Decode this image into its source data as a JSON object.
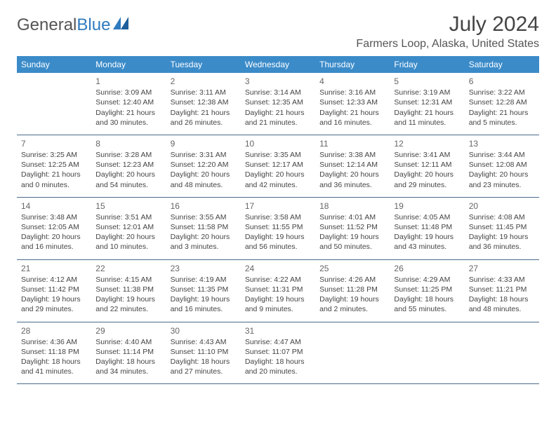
{
  "logo": {
    "text1": "General",
    "text2": "Blue"
  },
  "title": "July 2024",
  "location": "Farmers Loop, Alaska, United States",
  "colors": {
    "header_bg": "#3b8bc9",
    "header_fg": "#ffffff",
    "row_border": "#4a6a8a",
    "text": "#444444",
    "daynum": "#666666"
  },
  "dow": [
    "Sunday",
    "Monday",
    "Tuesday",
    "Wednesday",
    "Thursday",
    "Friday",
    "Saturday"
  ],
  "weeks": [
    [
      null,
      {
        "n": "1",
        "sr": "3:09 AM",
        "ss": "12:40 AM",
        "dl": "21 hours and 30 minutes."
      },
      {
        "n": "2",
        "sr": "3:11 AM",
        "ss": "12:38 AM",
        "dl": "21 hours and 26 minutes."
      },
      {
        "n": "3",
        "sr": "3:14 AM",
        "ss": "12:35 AM",
        "dl": "21 hours and 21 minutes."
      },
      {
        "n": "4",
        "sr": "3:16 AM",
        "ss": "12:33 AM",
        "dl": "21 hours and 16 minutes."
      },
      {
        "n": "5",
        "sr": "3:19 AM",
        "ss": "12:31 AM",
        "dl": "21 hours and 11 minutes."
      },
      {
        "n": "6",
        "sr": "3:22 AM",
        "ss": "12:28 AM",
        "dl": "21 hours and 5 minutes."
      }
    ],
    [
      {
        "n": "7",
        "sr": "3:25 AM",
        "ss": "12:25 AM",
        "dl": "21 hours and 0 minutes."
      },
      {
        "n": "8",
        "sr": "3:28 AM",
        "ss": "12:23 AM",
        "dl": "20 hours and 54 minutes."
      },
      {
        "n": "9",
        "sr": "3:31 AM",
        "ss": "12:20 AM",
        "dl": "20 hours and 48 minutes."
      },
      {
        "n": "10",
        "sr": "3:35 AM",
        "ss": "12:17 AM",
        "dl": "20 hours and 42 minutes."
      },
      {
        "n": "11",
        "sr": "3:38 AM",
        "ss": "12:14 AM",
        "dl": "20 hours and 36 minutes."
      },
      {
        "n": "12",
        "sr": "3:41 AM",
        "ss": "12:11 AM",
        "dl": "20 hours and 29 minutes."
      },
      {
        "n": "13",
        "sr": "3:44 AM",
        "ss": "12:08 AM",
        "dl": "20 hours and 23 minutes."
      }
    ],
    [
      {
        "n": "14",
        "sr": "3:48 AM",
        "ss": "12:05 AM",
        "dl": "20 hours and 16 minutes."
      },
      {
        "n": "15",
        "sr": "3:51 AM",
        "ss": "12:01 AM",
        "dl": "20 hours and 10 minutes."
      },
      {
        "n": "16",
        "sr": "3:55 AM",
        "ss": "11:58 PM",
        "dl": "20 hours and 3 minutes."
      },
      {
        "n": "17",
        "sr": "3:58 AM",
        "ss": "11:55 PM",
        "dl": "19 hours and 56 minutes."
      },
      {
        "n": "18",
        "sr": "4:01 AM",
        "ss": "11:52 PM",
        "dl": "19 hours and 50 minutes."
      },
      {
        "n": "19",
        "sr": "4:05 AM",
        "ss": "11:48 PM",
        "dl": "19 hours and 43 minutes."
      },
      {
        "n": "20",
        "sr": "4:08 AM",
        "ss": "11:45 PM",
        "dl": "19 hours and 36 minutes."
      }
    ],
    [
      {
        "n": "21",
        "sr": "4:12 AM",
        "ss": "11:42 PM",
        "dl": "19 hours and 29 minutes."
      },
      {
        "n": "22",
        "sr": "4:15 AM",
        "ss": "11:38 PM",
        "dl": "19 hours and 22 minutes."
      },
      {
        "n": "23",
        "sr": "4:19 AM",
        "ss": "11:35 PM",
        "dl": "19 hours and 16 minutes."
      },
      {
        "n": "24",
        "sr": "4:22 AM",
        "ss": "11:31 PM",
        "dl": "19 hours and 9 minutes."
      },
      {
        "n": "25",
        "sr": "4:26 AM",
        "ss": "11:28 PM",
        "dl": "19 hours and 2 minutes."
      },
      {
        "n": "26",
        "sr": "4:29 AM",
        "ss": "11:25 PM",
        "dl": "18 hours and 55 minutes."
      },
      {
        "n": "27",
        "sr": "4:33 AM",
        "ss": "11:21 PM",
        "dl": "18 hours and 48 minutes."
      }
    ],
    [
      {
        "n": "28",
        "sr": "4:36 AM",
        "ss": "11:18 PM",
        "dl": "18 hours and 41 minutes."
      },
      {
        "n": "29",
        "sr": "4:40 AM",
        "ss": "11:14 PM",
        "dl": "18 hours and 34 minutes."
      },
      {
        "n": "30",
        "sr": "4:43 AM",
        "ss": "11:10 PM",
        "dl": "18 hours and 27 minutes."
      },
      {
        "n": "31",
        "sr": "4:47 AM",
        "ss": "11:07 PM",
        "dl": "18 hours and 20 minutes."
      },
      null,
      null,
      null
    ]
  ]
}
